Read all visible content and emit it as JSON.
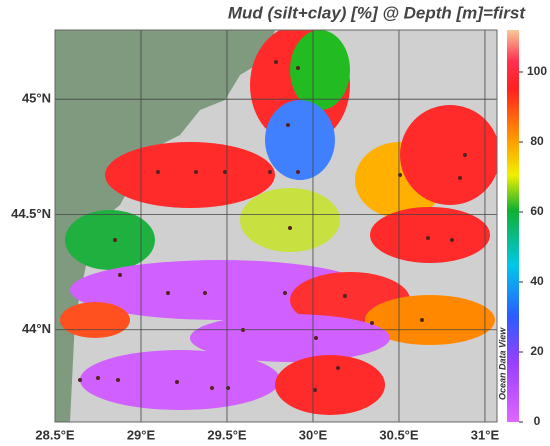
{
  "title": "Mud (silt+clay) [%] @ Depth [m]=first",
  "watermark": "Ocean Data View",
  "map": {
    "xlim": [
      28.5,
      31.07
    ],
    "ylim": [
      43.6,
      45.3
    ],
    "xticks": [
      {
        "value": 28.5,
        "label": "28.5°E"
      },
      {
        "value": 29,
        "label": "29°E"
      },
      {
        "value": 29.5,
        "label": "29.5°E"
      },
      {
        "value": 30,
        "label": "30°E"
      },
      {
        "value": 30.5,
        "label": "30.5°E"
      },
      {
        "value": 31,
        "label": "31°E"
      }
    ],
    "yticks": [
      {
        "value": 44,
        "label": "44°N"
      },
      {
        "value": 44.5,
        "label": "44.5°N"
      },
      {
        "value": 45,
        "label": "45°N"
      }
    ],
    "grid": true
  },
  "colorbar": {
    "lim": [
      0,
      112
    ],
    "ticks": [
      0,
      20,
      40,
      60,
      80,
      100
    ]
  }
}
